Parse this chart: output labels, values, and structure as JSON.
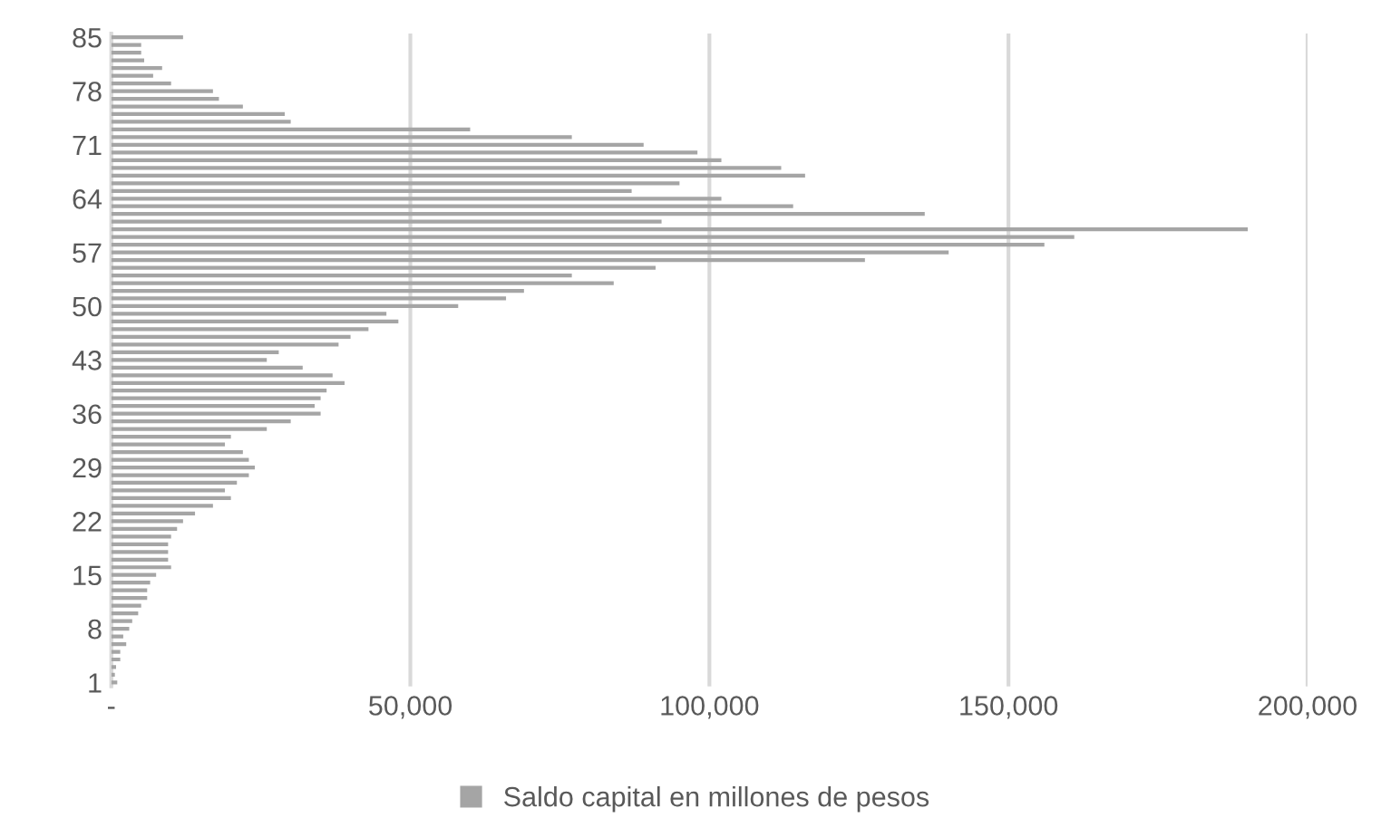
{
  "chart_data": {
    "type": "bar",
    "orientation": "horizontal",
    "categories": [
      "85",
      null,
      null,
      null,
      null,
      null,
      null,
      "78",
      null,
      null,
      null,
      null,
      null,
      null,
      "71",
      null,
      null,
      null,
      null,
      null,
      null,
      "64",
      null,
      null,
      null,
      null,
      null,
      null,
      "57",
      null,
      null,
      null,
      null,
      null,
      null,
      "50",
      null,
      null,
      null,
      null,
      null,
      null,
      "43",
      null,
      null,
      null,
      null,
      null,
      null,
      "36",
      null,
      null,
      null,
      null,
      null,
      null,
      "29",
      null,
      null,
      null,
      null,
      null,
      null,
      "22",
      null,
      null,
      null,
      null,
      null,
      null,
      "15",
      null,
      null,
      null,
      null,
      null,
      null,
      "8",
      null,
      null,
      null,
      null,
      null,
      null,
      "1"
    ],
    "series": [
      {
        "name": "Saldo capital en millones de pesos",
        "color": "#a5a5a5",
        "values": [
          12000,
          5000,
          5000,
          5500,
          8500,
          7000,
          10000,
          17000,
          18000,
          22000,
          29000,
          30000,
          60000,
          77000,
          89000,
          98000,
          102000,
          112000,
          116000,
          95000,
          87000,
          102000,
          114000,
          136000,
          92000,
          190000,
          161000,
          156000,
          140000,
          126000,
          91000,
          77000,
          84000,
          69000,
          66000,
          58000,
          46000,
          48000,
          43000,
          40000,
          38000,
          28000,
          26000,
          32000,
          37000,
          39000,
          36000,
          35000,
          34000,
          35000,
          30000,
          26000,
          20000,
          19000,
          22000,
          23000,
          24000,
          23000,
          21000,
          19000,
          20000,
          17000,
          14000,
          12000,
          11000,
          10000,
          9500,
          9500,
          9500,
          10000,
          7500,
          6500,
          6000,
          6000,
          5000,
          4500,
          3500,
          3000,
          2000,
          2500,
          1500,
          1500,
          800,
          600,
          1000
        ]
      }
    ],
    "xlim": [
      0,
      200000
    ],
    "xticks": [
      {
        "value": 0,
        "label": "-"
      },
      {
        "value": 50000,
        "label": "50,000"
      },
      {
        "value": 100000,
        "label": "100,000"
      },
      {
        "value": 150000,
        "label": "150,000"
      },
      {
        "value": 200000,
        "label": "200,000"
      }
    ],
    "grid": "x",
    "legend": "bottom"
  }
}
